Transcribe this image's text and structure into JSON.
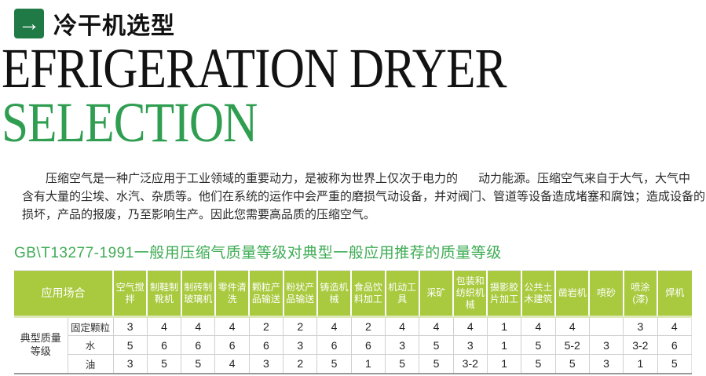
{
  "header": {
    "icon": "arrow-right-icon",
    "arrow_glyph": "→",
    "title": "冷干机选型"
  },
  "hero": {
    "line1": "EFRIGERATION DRYER",
    "line2": "SELECTION"
  },
  "intro": {
    "line1_left": "压缩空气是一种广泛应用于工业领域的重要动力，是被称为世界上仅次于电力的",
    "line1_right": "动力能源。压缩空气来自于大气，大气中",
    "line2": "含有大量的尘埃、水汽、杂质等。他们在系统的运作中会严重的磨损气动设备，并对阀门、管道等设备造成堵塞和腐蚀；造成设备的",
    "line3": "损坏，产品的报废，乃至影响生产。因此您需要高品质的压缩空气。"
  },
  "table_heading": "GB\\T13277-1991一般用压缩气质量等级对典型一般应用推荐的质量等级",
  "table": {
    "corner_header": "应用场合",
    "row_group_label": "典型质量等级",
    "columns": [
      "空气搅拌",
      "制鞋制靴机",
      "制砖制玻璃机",
      "零件清洗",
      "颗粒产品输送",
      "粉状产品输送",
      "铸造机械",
      "食品饮料加工",
      "机动工具",
      "采矿",
      "包装和纺织机械",
      "摄影胶片加工",
      "公共土木建筑",
      "凿岩机",
      "喷砂",
      "喷涂(漆)",
      "焊机"
    ],
    "rows": [
      {
        "label": "固定颗粒",
        "values": [
          "3",
          "4",
          "4",
          "4",
          "2",
          "2",
          "4",
          "2",
          "4",
          "4",
          "4",
          "1",
          "4",
          "4",
          "",
          "3",
          "4"
        ]
      },
      {
        "label": "水",
        "values": [
          "5",
          "6",
          "6",
          "6",
          "6",
          "3",
          "6",
          "6",
          "3",
          "5",
          "3",
          "1",
          "5",
          "5-2",
          "3",
          "3-2",
          "6"
        ]
      },
      {
        "label": "油",
        "values": [
          "3",
          "5",
          "5",
          "4",
          "3",
          "2",
          "5",
          "1",
          "5",
          "5",
          "3-2",
          "1",
          "5",
          "5",
          "3",
          "1",
          "5"
        ]
      }
    ]
  },
  "colors": {
    "icon_green": "#1f7a45",
    "hero_green": "#2f9e51",
    "heading_green": "#3fac55",
    "table_header_green": "#a9c93f",
    "table_header_text": "#ffffff"
  }
}
